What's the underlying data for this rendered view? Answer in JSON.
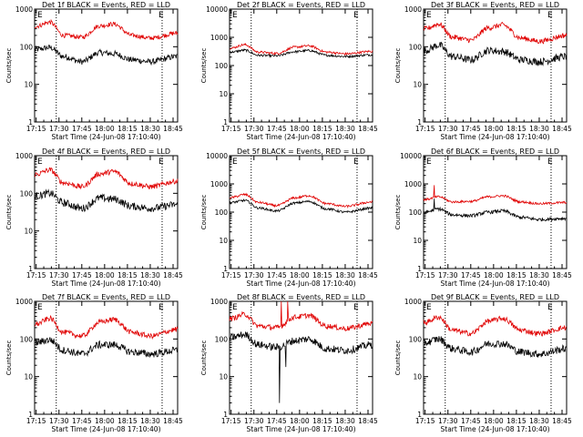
{
  "colors": {
    "events": "#000000",
    "lld": "#e00000",
    "axis": "#000000",
    "background": "#ffffff"
  },
  "chart_data": [
    {
      "type": "line",
      "title": "Det 1f BLACK = Events, RED = LLD",
      "xlabel": "Start Time (24-Jun-08 17:10:40)",
      "ylabel": "Counts/sec",
      "xlim": [
        17.233,
        18.8
      ],
      "ylim": [
        1,
        1000
      ],
      "log_y": true,
      "x_ticks": [
        "17:15",
        "17:30",
        "17:45",
        "18:00",
        "18:15",
        "18:30",
        "18:45"
      ],
      "y_ticks": [
        "1",
        "10",
        "100",
        "1000"
      ],
      "markers": [
        "E",
        "E"
      ],
      "series": [
        {
          "name": "Events",
          "x": [
            17.25,
            17.4,
            17.55,
            17.75,
            17.95,
            18.1,
            18.3,
            18.5,
            18.8
          ],
          "values": [
            85,
            95,
            55,
            40,
            70,
            65,
            45,
            40,
            55
          ],
          "noise": 0.08,
          "spikes": []
        },
        {
          "name": "LLD",
          "x": [
            17.25,
            17.4,
            17.55,
            17.75,
            17.95,
            18.1,
            18.3,
            18.5,
            18.8
          ],
          "values": [
            350,
            450,
            200,
            180,
            360,
            400,
            200,
            170,
            230
          ],
          "noise": 0.06,
          "spikes": []
        }
      ]
    },
    {
      "type": "line",
      "title": "Det 2f BLACK = Events, RED = LLD",
      "xlabel": "Start Time (24-Jun-08 17:10:40)",
      "ylabel": "Counts/sec",
      "xlim": [
        17.233,
        18.8
      ],
      "ylim": [
        1,
        10000
      ],
      "log_y": true,
      "x_ticks": [
        "17:15",
        "17:30",
        "17:45",
        "18:00",
        "18:15",
        "18:30",
        "18:45"
      ],
      "y_ticks": [
        "1",
        "10",
        "100",
        "1000",
        "10000"
      ],
      "markers": [
        "E",
        "E"
      ],
      "series": [
        {
          "name": "Events",
          "x": [
            17.25,
            17.4,
            17.55,
            17.75,
            17.95,
            18.1,
            18.3,
            18.5,
            18.8
          ],
          "values": [
            300,
            350,
            230,
            220,
            310,
            340,
            230,
            210,
            240
          ],
          "noise": 0.04,
          "spikes": []
        },
        {
          "name": "LLD",
          "x": [
            17.25,
            17.4,
            17.55,
            17.75,
            17.95,
            18.1,
            18.3,
            18.5,
            18.8
          ],
          "values": [
            420,
            550,
            300,
            270,
            450,
            500,
            300,
            260,
            320
          ],
          "noise": 0.04,
          "spikes": []
        }
      ]
    },
    {
      "type": "line",
      "title": "Det 3f BLACK = Events, RED = LLD",
      "xlabel": "Start Time (24-Jun-08 17:10:40)",
      "ylabel": "Counts/sec",
      "xlim": [
        17.233,
        18.8
      ],
      "ylim": [
        1,
        1000
      ],
      "log_y": true,
      "x_ticks": [
        "17:15",
        "17:30",
        "17:45",
        "18:00",
        "18:15",
        "18:30",
        "18:45"
      ],
      "y_ticks": [
        "1",
        "10",
        "100",
        "1000"
      ],
      "markers": [
        "E",
        "E"
      ],
      "series": [
        {
          "name": "Events",
          "x": [
            17.25,
            17.4,
            17.55,
            17.75,
            17.95,
            18.1,
            18.3,
            18.5,
            18.8
          ],
          "values": [
            80,
            110,
            55,
            45,
            80,
            75,
            45,
            40,
            55
          ],
          "noise": 0.1,
          "spikes": []
        },
        {
          "name": "LLD",
          "x": [
            17.25,
            17.4,
            17.55,
            17.75,
            17.95,
            18.1,
            18.3,
            18.5,
            18.8
          ],
          "values": [
            300,
            400,
            180,
            150,
            320,
            380,
            170,
            140,
            200
          ],
          "noise": 0.07,
          "spikes": []
        }
      ]
    },
    {
      "type": "line",
      "title": "Det 4f BLACK = Events, RED = LLD",
      "xlabel": "Start Time (24-Jun-08 17:10:40)",
      "ylabel": "Counts/sec",
      "xlim": [
        17.233,
        18.8
      ],
      "ylim": [
        1,
        1000
      ],
      "log_y": true,
      "x_ticks": [
        "17:15",
        "17:30",
        "17:45",
        "18:00",
        "18:15",
        "18:30",
        "18:45"
      ],
      "y_ticks": [
        "1",
        "10",
        "100",
        "1000"
      ],
      "markers": [
        "E",
        "E"
      ],
      "series": [
        {
          "name": "Events",
          "x": [
            17.25,
            17.4,
            17.55,
            17.75,
            17.95,
            18.1,
            18.3,
            18.5,
            18.8
          ],
          "values": [
            85,
            100,
            55,
            40,
            75,
            70,
            45,
            40,
            50
          ],
          "noise": 0.1,
          "spikes": []
        },
        {
          "name": "LLD",
          "x": [
            17.25,
            17.4,
            17.55,
            17.75,
            17.95,
            18.1,
            18.3,
            18.5,
            18.8
          ],
          "values": [
            320,
            420,
            190,
            150,
            330,
            380,
            180,
            150,
            210
          ],
          "noise": 0.07,
          "spikes": []
        }
      ]
    },
    {
      "type": "line",
      "title": "Det 5f BLACK = Events, RED = LLD",
      "xlabel": "Start Time (24-Jun-08 17:10:40)",
      "ylabel": "Counts/sec",
      "xlim": [
        17.233,
        18.8
      ],
      "ylim": [
        1,
        10000
      ],
      "log_y": true,
      "x_ticks": [
        "17:15",
        "17:30",
        "17:45",
        "18:00",
        "18:15",
        "18:30",
        "18:45"
      ],
      "y_ticks": [
        "1",
        "10",
        "100",
        "1000",
        "10000"
      ],
      "markers": [
        "E",
        "E"
      ],
      "series": [
        {
          "name": "Events",
          "x": [
            17.25,
            17.4,
            17.55,
            17.75,
            17.95,
            18.1,
            18.3,
            18.5,
            18.8
          ],
          "values": [
            220,
            260,
            140,
            110,
            210,
            240,
            130,
            100,
            140
          ],
          "noise": 0.04,
          "spikes": []
        },
        {
          "name": "LLD",
          "x": [
            17.25,
            17.4,
            17.55,
            17.75,
            17.95,
            18.1,
            18.3,
            18.5,
            18.8
          ],
          "values": [
            330,
            420,
            220,
            170,
            320,
            380,
            200,
            160,
            230
          ],
          "noise": 0.04,
          "spikes": []
        }
      ]
    },
    {
      "type": "line",
      "title": "Det 6f BLACK = Events, RED = LLD",
      "xlabel": "Start Time (24-Jun-08 17:10:40)",
      "ylabel": "Counts/sec",
      "xlim": [
        17.233,
        18.8
      ],
      "ylim": [
        1,
        10000
      ],
      "log_y": true,
      "x_ticks": [
        "17:15",
        "17:30",
        "17:45",
        "18:00",
        "18:15",
        "18:30",
        "18:45"
      ],
      "y_ticks": [
        "1",
        "10",
        "100",
        "1000",
        "10000"
      ],
      "markers": [
        "E",
        "E"
      ],
      "series": [
        {
          "name": "Events",
          "x": [
            17.25,
            17.4,
            17.55,
            17.75,
            17.95,
            18.1,
            18.3,
            18.5,
            18.8
          ],
          "values": [
            100,
            130,
            80,
            75,
            100,
            110,
            65,
            55,
            60
          ],
          "noise": 0.06,
          "spikes": [
            [
              17.35,
              300
            ]
          ]
        },
        {
          "name": "LLD",
          "x": [
            17.25,
            17.4,
            17.55,
            17.75,
            17.95,
            18.1,
            18.3,
            18.5,
            18.8
          ],
          "values": [
            280,
            350,
            230,
            240,
            350,
            380,
            230,
            200,
            220
          ],
          "noise": 0.04,
          "spikes": [
            [
              17.35,
              900
            ]
          ]
        }
      ]
    },
    {
      "type": "line",
      "title": "Det 7f BLACK = Events, RED = LLD",
      "xlabel": "Start Time (24-Jun-08 17:10:40)",
      "ylabel": "Counts/sec",
      "xlim": [
        17.233,
        18.8
      ],
      "ylim": [
        1,
        1000
      ],
      "log_y": true,
      "x_ticks": [
        "17:15",
        "17:30",
        "17:45",
        "18:00",
        "18:15",
        "18:30",
        "18:45"
      ],
      "y_ticks": [
        "1",
        "10",
        "100",
        "1000"
      ],
      "markers": [
        "E",
        "E"
      ],
      "series": [
        {
          "name": "Events",
          "x": [
            17.25,
            17.4,
            17.55,
            17.75,
            17.95,
            18.1,
            18.3,
            18.5,
            18.8
          ],
          "values": [
            80,
            95,
            50,
            40,
            70,
            70,
            45,
            40,
            50
          ],
          "noise": 0.1,
          "spikes": []
        },
        {
          "name": "LLD",
          "x": [
            17.25,
            17.4,
            17.55,
            17.75,
            17.95,
            18.1,
            18.3,
            18.5,
            18.8
          ],
          "values": [
            250,
            350,
            150,
            120,
            280,
            330,
            150,
            120,
            180
          ],
          "noise": 0.07,
          "spikes": []
        }
      ]
    },
    {
      "type": "line",
      "title": "Det 8f BLACK = Events, RED = LLD",
      "xlabel": "Start Time (24-Jun-08 17:10:40)",
      "ylabel": "Counts/sec",
      "xlim": [
        17.233,
        18.8
      ],
      "ylim": [
        1,
        1000
      ],
      "log_y": true,
      "x_ticks": [
        "17:15",
        "17:30",
        "17:45",
        "18:00",
        "18:15",
        "18:30",
        "18:45"
      ],
      "y_ticks": [
        "1",
        "10",
        "100",
        "1000"
      ],
      "markers": [
        "E",
        "E"
      ],
      "series": [
        {
          "name": "Events",
          "x": [
            17.25,
            17.4,
            17.55,
            17.75,
            17.95,
            18.1,
            18.3,
            18.5,
            18.8
          ],
          "values": [
            110,
            130,
            70,
            60,
            90,
            100,
            55,
            50,
            70
          ],
          "noise": 0.1,
          "spikes": [
            [
              17.78,
              2
            ],
            [
              17.85,
              18
            ]
          ]
        },
        {
          "name": "LLD",
          "x": [
            17.25,
            17.4,
            17.55,
            17.75,
            17.95,
            18.1,
            18.3,
            18.5,
            18.8
          ],
          "values": [
            350,
            450,
            220,
            200,
            380,
            420,
            220,
            190,
            260
          ],
          "noise": 0.07,
          "spikes": [
            [
              17.8,
              1000
            ],
            [
              17.87,
              1000
            ]
          ]
        }
      ]
    },
    {
      "type": "line",
      "title": "Det 9f BLACK = Events, RED = LLD",
      "xlabel": "Start Time (24-Jun-08 17:10:40)",
      "ylabel": "Counts/sec",
      "xlim": [
        17.233,
        18.8
      ],
      "ylim": [
        1,
        1000
      ],
      "log_y": true,
      "x_ticks": [
        "17:15",
        "17:30",
        "17:45",
        "18:00",
        "18:15",
        "18:30",
        "18:45"
      ],
      "y_ticks": [
        "1",
        "10",
        "100",
        "1000"
      ],
      "markers": [
        "E",
        "E"
      ],
      "series": [
        {
          "name": "Events",
          "x": [
            17.25,
            17.4,
            17.55,
            17.75,
            17.95,
            18.1,
            18.3,
            18.5,
            18.8
          ],
          "values": [
            80,
            100,
            55,
            45,
            75,
            75,
            45,
            40,
            55
          ],
          "noise": 0.1,
          "spikes": []
        },
        {
          "name": "LLD",
          "x": [
            17.25,
            17.4,
            17.55,
            17.75,
            17.95,
            18.1,
            18.3,
            18.5,
            18.8
          ],
          "values": [
            280,
            380,
            170,
            140,
            300,
            350,
            170,
            140,
            200
          ],
          "noise": 0.07,
          "spikes": []
        }
      ]
    }
  ]
}
